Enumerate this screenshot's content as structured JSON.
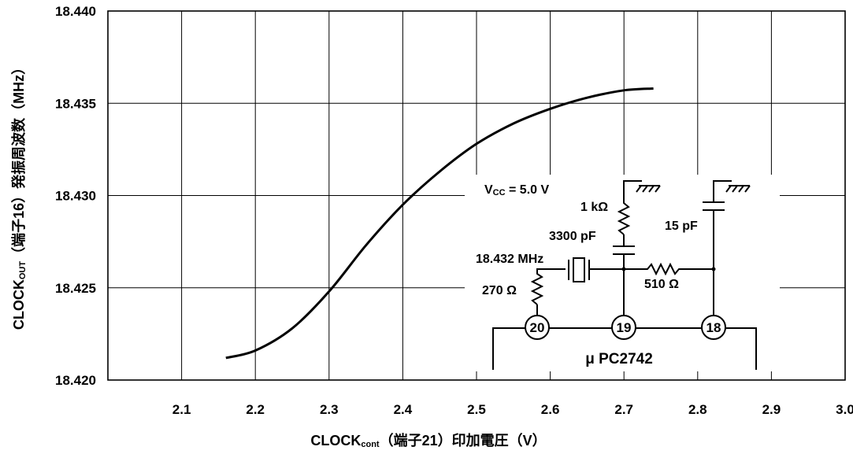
{
  "chart_data": {
    "type": "line",
    "x_tick_labels": [
      "2.1",
      "2.2",
      "2.3",
      "2.4",
      "2.5",
      "2.6",
      "2.7",
      "2.8",
      "2.9",
      "3.0"
    ],
    "y_tick_labels": [
      "18.420",
      "18.425",
      "18.430",
      "18.435",
      "18.440"
    ],
    "xlim": [
      2.0,
      3.0
    ],
    "ylim": [
      18.42,
      18.44
    ],
    "grid": true,
    "xlabel": {
      "main": "CLOCK",
      "sub": "cont",
      "rest": "（端子21）印加電圧（V）"
    },
    "ylabel": {
      "main": "CLOCK",
      "sub": "OUT",
      "rest": "（端子16）発振周波数（MHz）"
    },
    "series": [
      {
        "x": [
          2.16,
          2.2,
          2.25,
          2.3,
          2.35,
          2.4,
          2.45,
          2.5,
          2.55,
          2.6,
          2.65,
          2.7,
          2.74
        ],
        "y": [
          18.4212,
          18.4216,
          18.4228,
          18.4248,
          18.4273,
          18.4295,
          18.4313,
          18.4328,
          18.4339,
          18.4347,
          18.4353,
          18.4357,
          18.4358
        ]
      }
    ]
  },
  "inset": {
    "supply": "Vcc = 5.0 V",
    "supply_main": "V",
    "supply_sub": "CC",
    "supply_rest": " = 5.0 V",
    "r1": "1 kΩ",
    "c1": "3300 pF",
    "c2": "15 pF",
    "crystal": "18.432 MHz",
    "r2": "270 Ω",
    "r3": "510 Ω",
    "pins": [
      "20",
      "19",
      "18"
    ],
    "chip": "μ PC2742"
  },
  "colors": {
    "line": "#000000",
    "grid": "#000000",
    "background": "#ffffff"
  }
}
